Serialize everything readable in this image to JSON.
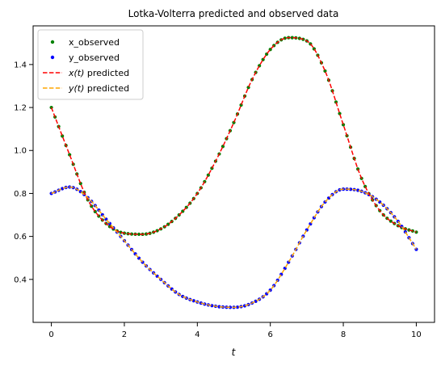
{
  "chart_data": {
    "type": "scatter",
    "title": "Lotka-Volterra predicted and observed data",
    "xlabel": "t",
    "ylabel": "",
    "xlim": [
      -0.5,
      10.5
    ],
    "ylim": [
      0.2,
      1.58
    ],
    "xticks": [
      0,
      2,
      4,
      6,
      8,
      10
    ],
    "xtick_labels": [
      "0",
      "2",
      "4",
      "6",
      "8",
      "10"
    ],
    "yticks": [
      0.4,
      0.6,
      0.8,
      1.0,
      1.2,
      1.4
    ],
    "ytick_labels": [
      "0.4",
      "0.6",
      "0.8",
      "1.0",
      "1.2",
      "1.4"
    ],
    "grid": false,
    "legend_position": "top-left",
    "x_knots": [
      0,
      0.5,
      1.0,
      1.5,
      2.0,
      2.5,
      3.0,
      3.5,
      4.0,
      4.5,
      5.0,
      5.5,
      6.0,
      6.5,
      7.0,
      7.5,
      8.0,
      8.5,
      9.0,
      9.5,
      10.0
    ],
    "x_knot_values": [
      1.2,
      0.98,
      0.77,
      0.66,
      0.615,
      0.61,
      0.635,
      0.7,
      0.8,
      0.95,
      1.13,
      1.33,
      1.47,
      1.525,
      1.51,
      1.37,
      1.12,
      0.87,
      0.72,
      0.65,
      0.62
    ],
    "y_knot_values": [
      0.8,
      0.83,
      0.78,
      0.68,
      0.58,
      0.48,
      0.4,
      0.33,
      0.295,
      0.275,
      0.27,
      0.29,
      0.35,
      0.48,
      0.63,
      0.76,
      0.82,
      0.81,
      0.76,
      0.67,
      0.54
    ],
    "n_observations": 101,
    "series": [
      {
        "name": "x_observed",
        "kind": "scatter",
        "variable": "x",
        "color": "#008000"
      },
      {
        "name": "y_observed",
        "kind": "scatter",
        "variable": "y",
        "color": "#0000ff"
      },
      {
        "name": "x(t) predicted",
        "label_var": "x(t)",
        "label_rest": " predicted",
        "kind": "line",
        "variable": "x",
        "color": "#ff0000",
        "dashed": true
      },
      {
        "name": "y(t) predicted",
        "label_var": "y(t)",
        "label_rest": " predicted",
        "kind": "line",
        "variable": "y",
        "color": "#ffa500",
        "dashed": true
      }
    ]
  }
}
